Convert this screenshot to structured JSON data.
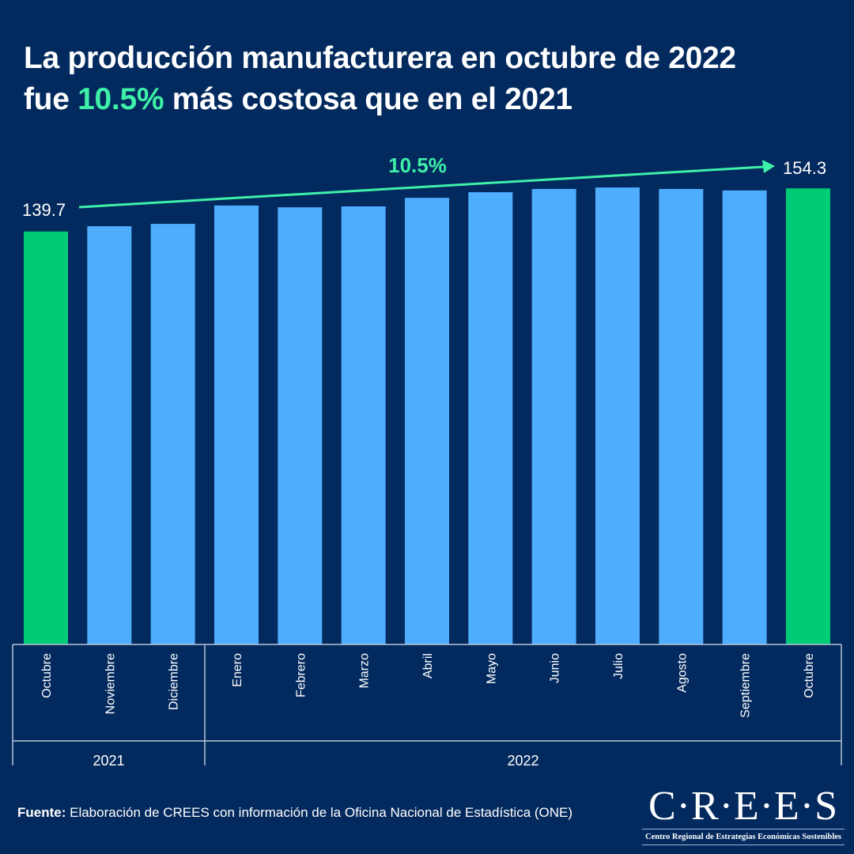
{
  "title": {
    "line1": "La producción manufacturera en octubre de 2022",
    "line2_pre": "fue ",
    "line2_highlight": "10.5%",
    "line2_post": " más costosa que en el 2021"
  },
  "colors": {
    "background": "#032a5e",
    "bar": "#4fadff",
    "highlight_bar": "#00cc77",
    "arrow": "#3ef0a8"
  },
  "chart_data": {
    "type": "bar",
    "title": "",
    "xlabel": "",
    "ylabel": "",
    "ylim": [
      0,
      160
    ],
    "grid": false,
    "categories": [
      "Octubre",
      "Noviembre",
      "Diciembre",
      "Enero",
      "Febrero",
      "Marzo",
      "Abril",
      "Mayo",
      "Junio",
      "Julio",
      "Agosto",
      "Septiembre",
      "Octubre"
    ],
    "years": [
      {
        "label": "2021",
        "span": 3
      },
      {
        "label": "2022",
        "span": 10
      }
    ],
    "values": [
      139.7,
      141.5,
      142.3,
      148.5,
      147.9,
      148.2,
      151.1,
      153.0,
      154.1,
      154.6,
      154.1,
      153.6,
      154.3
    ],
    "highlighted": [
      0,
      12
    ],
    "data_labels": {
      "first": "139.7",
      "last": "154.3"
    },
    "annotation": "10.5%"
  },
  "source": {
    "label": "Fuente:",
    "text": " Elaboración de CREES con información de la Oficina Nacional de Estadística (ONE)"
  },
  "logo": {
    "name": "C·R·E·E·S",
    "subtitle": "Centro Regional de Estrategias Económicas Sostenibles"
  }
}
